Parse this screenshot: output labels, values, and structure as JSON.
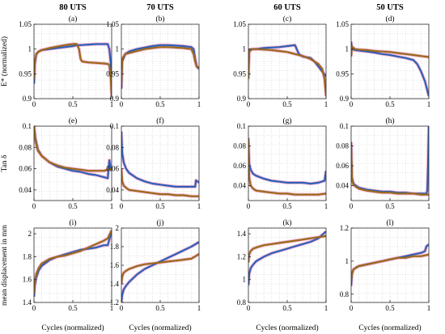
{
  "col_titles": [
    "80 UTS",
    "70 UTS",
    "60 UTS",
    "50 UTS"
  ],
  "panel_labels": [
    "(a)",
    "(b)",
    "(c)",
    "(d)",
    "(e)",
    "(f)",
    "(g)",
    "(h)",
    "(i)",
    "(j)",
    "(k)",
    "(l)"
  ],
  "row_ylabels": [
    "E* (normalized)",
    "Tan δ",
    "mean displacement in mm"
  ],
  "xlabel": "Cycles (normalized)",
  "colors": {
    "blue": "#2e60b8",
    "olive": "#9a6a1c",
    "pink": "#f4a5c8"
  },
  "chart_data": [
    {
      "type": "line",
      "panel": "(a)",
      "xlim": [
        0,
        1
      ],
      "ylim": [
        0.9,
        1.05
      ],
      "grid": true,
      "xticks": [
        0,
        0.5,
        1
      ],
      "yticks": [
        0.9,
        0.95,
        1,
        1.05
      ],
      "series": [
        {
          "x": [
            0,
            0.01,
            0.03,
            0.06,
            0.1,
            0.2,
            0.3,
            0.4,
            0.5,
            0.55,
            0.6,
            0.7,
            0.8,
            0.9,
            0.95,
            0.97,
            0.99,
            1
          ],
          "y": [
            0.93,
            0.97,
            0.99,
            0.995,
            0.998,
            1.0,
            1.002,
            1.004,
            1.006,
            1.008,
            1.008,
            1.009,
            1.01,
            1.01,
            1.01,
            1.0,
            0.97,
            0.91
          ]
        },
        {
          "x": [
            0,
            0.01,
            0.03,
            0.06,
            0.1,
            0.2,
            0.3,
            0.4,
            0.5,
            0.55,
            0.58,
            0.6,
            0.62,
            0.7,
            0.8,
            0.9,
            0.95,
            0.97,
            0.99,
            1
          ],
          "y": [
            0.94,
            0.975,
            0.99,
            0.995,
            0.998,
            1.002,
            1.005,
            1.008,
            1.01,
            1.01,
            1.0,
            0.98,
            0.975,
            0.973,
            0.972,
            0.971,
            0.97,
            0.968,
            0.94,
            0.905
          ]
        }
      ]
    },
    {
      "type": "line",
      "panel": "(b)",
      "xlim": [
        0,
        1
      ],
      "ylim": [
        0.9,
        1.05
      ],
      "grid": true,
      "xticks": [
        0,
        0.5,
        1
      ],
      "yticks": [
        0.9,
        0.95,
        1,
        1.05
      ],
      "series": [
        {
          "x": [
            0,
            0.01,
            0.05,
            0.1,
            0.2,
            0.3,
            0.4,
            0.5,
            0.6,
            0.7,
            0.8,
            0.9,
            0.93,
            0.95,
            0.97,
            1
          ],
          "y": [
            0.92,
            0.975,
            0.99,
            0.995,
            1.0,
            1.003,
            1.006,
            1.008,
            1.008,
            1.007,
            1.006,
            1.004,
            1.0,
            0.98,
            0.965,
            0.96
          ]
        },
        {
          "x": [
            0,
            0.01,
            0.05,
            0.1,
            0.2,
            0.3,
            0.4,
            0.5,
            0.6,
            0.7,
            0.8,
            0.9,
            0.93,
            0.95,
            0.97,
            1
          ],
          "y": [
            0.93,
            0.98,
            0.99,
            0.992,
            0.996,
            1.0,
            1.002,
            1.004,
            1.004,
            1.003,
            1.002,
            1.0,
            0.99,
            0.975,
            0.965,
            0.962
          ]
        }
      ]
    },
    {
      "type": "line",
      "panel": "(c)",
      "xlim": [
        0,
        1
      ],
      "ylim": [
        0.9,
        1.05
      ],
      "grid": true,
      "xticks": [
        0,
        0.5,
        1
      ],
      "yticks": [
        0.9,
        0.95,
        1,
        1.05
      ],
      "series": [
        {
          "x": [
            0,
            0.01,
            0.05,
            0.1,
            0.2,
            0.3,
            0.4,
            0.5,
            0.6,
            0.65,
            0.7,
            0.8,
            0.85,
            0.9,
            0.95,
            1
          ],
          "y": [
            0.96,
            0.998,
            1.0,
            1.0,
            1.002,
            1.003,
            1.004,
            1.006,
            1.008,
            0.99,
            0.985,
            0.982,
            0.975,
            0.965,
            0.955,
            0.945
          ]
        },
        {
          "x": [
            0,
            0.01,
            0.05,
            0.1,
            0.2,
            0.3,
            0.4,
            0.5,
            0.6,
            0.7,
            0.8,
            0.9,
            0.95,
            0.98,
            1
          ],
          "y": [
            0.94,
            0.995,
            1.0,
            1.0,
            0.999,
            0.998,
            0.996,
            0.994,
            0.99,
            0.986,
            0.98,
            0.97,
            0.96,
            0.94,
            0.905
          ]
        }
      ]
    },
    {
      "type": "line",
      "panel": "(d)",
      "xlim": [
        0,
        1
      ],
      "ylim": [
        0.9,
        1.05
      ],
      "grid": true,
      "xticks": [
        0,
        0.5,
        1
      ],
      "yticks": [
        0.9,
        0.95,
        1,
        1.05
      ],
      "series": [
        {
          "x": [
            0,
            0.01,
            0.05,
            0.1,
            0.2,
            0.3,
            0.4,
            0.5,
            0.6,
            0.7,
            0.8,
            0.85,
            0.9,
            0.95,
            1
          ],
          "y": [
            1.015,
            1.0,
            0.998,
            0.997,
            0.995,
            0.993,
            0.99,
            0.988,
            0.985,
            0.982,
            0.978,
            0.97,
            0.955,
            0.935,
            0.905
          ]
        },
        {
          "x": [
            0,
            0.01,
            0.05,
            0.1,
            0.2,
            0.3,
            0.4,
            0.5,
            0.6,
            0.7,
            0.8,
            0.9,
            1
          ],
          "y": [
            0.985,
            1.005,
            1.0,
            0.999,
            0.998,
            0.996,
            0.995,
            0.994,
            0.992,
            0.99,
            0.988,
            0.986,
            0.984
          ]
        }
      ]
    },
    {
      "type": "line",
      "panel": "(e)",
      "xlim": [
        0,
        1
      ],
      "ylim": [
        0.03,
        0.1
      ],
      "grid": true,
      "xticks": [
        0,
        0.5,
        1
      ],
      "yticks": [
        0.04,
        0.06,
        0.08,
        0.1
      ],
      "series": [
        {
          "x": [
            0,
            0.02,
            0.05,
            0.1,
            0.2,
            0.3,
            0.4,
            0.5,
            0.6,
            0.7,
            0.8,
            0.9,
            0.95,
            0.97,
            0.99,
            1
          ],
          "y": [
            0.1,
            0.088,
            0.078,
            0.072,
            0.066,
            0.062,
            0.06,
            0.058,
            0.057,
            0.055,
            0.054,
            0.052,
            0.051,
            0.068,
            0.06,
            0.058
          ]
        },
        {
          "x": [
            0,
            0.02,
            0.05,
            0.1,
            0.2,
            0.3,
            0.4,
            0.5,
            0.6,
            0.7,
            0.8,
            0.9,
            0.95,
            1
          ],
          "y": [
            0.1,
            0.086,
            0.077,
            0.072,
            0.066,
            0.063,
            0.061,
            0.06,
            0.059,
            0.058,
            0.058,
            0.058,
            0.059,
            0.06
          ]
        }
      ]
    },
    {
      "type": "line",
      "panel": "(f)",
      "xlim": [
        0,
        1
      ],
      "ylim": [
        0.03,
        0.1
      ],
      "grid": true,
      "xticks": [
        0,
        0.5,
        1
      ],
      "yticks": [
        0.04,
        0.06,
        0.08,
        0.1
      ],
      "series": [
        {
          "x": [
            0,
            0.01,
            0.03,
            0.06,
            0.1,
            0.2,
            0.3,
            0.4,
            0.5,
            0.6,
            0.7,
            0.8,
            0.9,
            0.95,
            0.96,
            1
          ],
          "y": [
            0.095,
            0.075,
            0.066,
            0.06,
            0.056,
            0.051,
            0.048,
            0.046,
            0.045,
            0.044,
            0.043,
            0.043,
            0.043,
            0.043,
            0.049,
            0.047
          ]
        },
        {
          "x": [
            0,
            0.01,
            0.03,
            0.06,
            0.1,
            0.2,
            0.3,
            0.4,
            0.5,
            0.6,
            0.7,
            0.8,
            0.9,
            1
          ],
          "y": [
            0.06,
            0.048,
            0.044,
            0.042,
            0.04,
            0.039,
            0.038,
            0.037,
            0.036,
            0.036,
            0.035,
            0.035,
            0.034,
            0.034
          ]
        }
      ]
    },
    {
      "type": "line",
      "panel": "(g)",
      "xlim": [
        0,
        1
      ],
      "ylim": [
        0.025,
        0.1
      ],
      "grid": true,
      "xticks": [
        0,
        0.5,
        1
      ],
      "yticks": [
        0.04,
        0.06,
        0.08,
        0.1
      ],
      "series": [
        {
          "x": [
            0,
            0.01,
            0.03,
            0.06,
            0.1,
            0.2,
            0.3,
            0.4,
            0.5,
            0.6,
            0.7,
            0.8,
            0.9,
            0.98,
            1
          ],
          "y": [
            0.085,
            0.062,
            0.056,
            0.052,
            0.05,
            0.047,
            0.045,
            0.044,
            0.043,
            0.043,
            0.043,
            0.042,
            0.043,
            0.045,
            0.055
          ]
        },
        {
          "x": [
            0,
            0.01,
            0.03,
            0.06,
            0.1,
            0.2,
            0.3,
            0.4,
            0.5,
            0.6,
            0.7,
            0.8,
            0.9,
            1
          ],
          "y": [
            0.088,
            0.048,
            0.04,
            0.037,
            0.035,
            0.034,
            0.033,
            0.032,
            0.032,
            0.031,
            0.031,
            0.031,
            0.031,
            0.032
          ]
        }
      ]
    },
    {
      "type": "line",
      "panel": "(h)",
      "xlim": [
        0,
        1
      ],
      "ylim": [
        0.025,
        0.1
      ],
      "grid": true,
      "xticks": [
        0,
        0.5,
        1
      ],
      "yticks": [
        0.04,
        0.06,
        0.08,
        0.1
      ],
      "series": [
        {
          "x": [
            0,
            0.01,
            0.03,
            0.06,
            0.1,
            0.2,
            0.3,
            0.4,
            0.5,
            0.6,
            0.7,
            0.8,
            0.9,
            0.95,
            0.97,
            0.98,
            0.99,
            1
          ],
          "y": [
            0.084,
            0.048,
            0.042,
            0.04,
            0.038,
            0.036,
            0.035,
            0.034,
            0.034,
            0.033,
            0.033,
            0.032,
            0.032,
            0.032,
            0.032,
            0.035,
            0.06,
            0.1
          ]
        },
        {
          "x": [
            0,
            0.01,
            0.03,
            0.06,
            0.1,
            0.2,
            0.3,
            0.4,
            0.5,
            0.6,
            0.7,
            0.8,
            0.9,
            1
          ],
          "y": [
            0.08,
            0.046,
            0.041,
            0.039,
            0.037,
            0.035,
            0.034,
            0.033,
            0.033,
            0.032,
            0.032,
            0.032,
            0.031,
            0.031
          ]
        }
      ]
    },
    {
      "type": "line",
      "panel": "(i)",
      "xlim": [
        0,
        1
      ],
      "ylim": [
        1.4,
        2.05
      ],
      "grid": true,
      "xticks": [
        0,
        0.5,
        1
      ],
      "yticks": [
        1.4,
        1.6,
        1.8,
        2
      ],
      "series": [
        {
          "x": [
            0,
            0.01,
            0.03,
            0.06,
            0.1,
            0.2,
            0.3,
            0.4,
            0.5,
            0.6,
            0.7,
            0.8,
            0.9,
            0.95,
            0.97,
            1
          ],
          "y": [
            1.45,
            1.55,
            1.62,
            1.68,
            1.72,
            1.77,
            1.8,
            1.82,
            1.84,
            1.86,
            1.87,
            1.88,
            1.9,
            1.9,
            1.95,
            2.02
          ]
        },
        {
          "x": [
            0,
            0.01,
            0.03,
            0.06,
            0.1,
            0.2,
            0.3,
            0.4,
            0.5,
            0.6,
            0.7,
            0.8,
            0.9,
            0.95,
            1
          ],
          "y": [
            1.48,
            1.58,
            1.65,
            1.7,
            1.74,
            1.78,
            1.8,
            1.81,
            1.83,
            1.85,
            1.88,
            1.91,
            1.94,
            1.96,
            2.03
          ]
        }
      ]
    },
    {
      "type": "line",
      "panel": "(j)",
      "xlim": [
        0,
        1
      ],
      "ylim": [
        1.2,
        2
      ],
      "grid": true,
      "xticks": [
        0,
        0.5,
        1
      ],
      "yticks": [
        1.2,
        1.4,
        1.6,
        1.8,
        2
      ],
      "series": [
        {
          "x": [
            0,
            0.01,
            0.03,
            0.06,
            0.1,
            0.2,
            0.3,
            0.4,
            0.5,
            0.6,
            0.7,
            0.8,
            0.9,
            1
          ],
          "y": [
            1.2,
            1.28,
            1.34,
            1.38,
            1.42,
            1.5,
            1.56,
            1.6,
            1.64,
            1.68,
            1.72,
            1.76,
            1.8,
            1.85
          ]
        },
        {
          "x": [
            0,
            0.01,
            0.03,
            0.06,
            0.1,
            0.2,
            0.3,
            0.4,
            0.5,
            0.6,
            0.7,
            0.8,
            0.9,
            1
          ],
          "y": [
            1.4,
            1.48,
            1.52,
            1.54,
            1.56,
            1.59,
            1.61,
            1.62,
            1.63,
            1.64,
            1.65,
            1.66,
            1.67,
            1.72
          ]
        }
      ]
    },
    {
      "type": "line",
      "panel": "(k)",
      "xlim": [
        0,
        1
      ],
      "ylim": [
        0.8,
        1.45
      ],
      "grid": true,
      "xticks": [
        0,
        0.5,
        1
      ],
      "yticks": [
        0.8,
        1,
        1.2,
        1.4
      ],
      "series": [
        {
          "x": [
            0,
            0.01,
            0.03,
            0.06,
            0.1,
            0.2,
            0.3,
            0.4,
            0.5,
            0.6,
            0.7,
            0.8,
            0.9,
            1
          ],
          "y": [
            0.95,
            1.05,
            1.1,
            1.13,
            1.16,
            1.2,
            1.23,
            1.25,
            1.27,
            1.29,
            1.31,
            1.33,
            1.36,
            1.42
          ]
        },
        {
          "x": [
            0,
            0.01,
            0.03,
            0.06,
            0.1,
            0.2,
            0.3,
            0.4,
            0.5,
            0.6,
            0.7,
            0.8,
            0.9,
            1
          ],
          "y": [
            1.15,
            1.22,
            1.25,
            1.27,
            1.28,
            1.3,
            1.31,
            1.32,
            1.33,
            1.34,
            1.35,
            1.36,
            1.37,
            1.38
          ]
        }
      ]
    },
    {
      "type": "line",
      "panel": "(l)",
      "xlim": [
        0,
        1
      ],
      "ylim": [
        0.75,
        1.2
      ],
      "grid": true,
      "xticks": [
        0,
        0.5,
        1
      ],
      "yticks": [
        0.8,
        1,
        1.2
      ],
      "series": [
        {
          "x": [
            0,
            0.01,
            0.03,
            0.06,
            0.1,
            0.2,
            0.3,
            0.4,
            0.5,
            0.6,
            0.7,
            0.8,
            0.9,
            0.95,
            0.97,
            1
          ],
          "y": [
            0.85,
            0.92,
            0.95,
            0.96,
            0.97,
            0.98,
            0.99,
            1.0,
            1.01,
            1.02,
            1.03,
            1.04,
            1.05,
            1.06,
            1.09,
            1.1
          ]
        },
        {
          "x": [
            0,
            0.01,
            0.03,
            0.06,
            0.1,
            0.2,
            0.3,
            0.4,
            0.5,
            0.6,
            0.7,
            0.8,
            0.9,
            1
          ],
          "y": [
            0.88,
            0.93,
            0.95,
            0.96,
            0.97,
            0.98,
            0.99,
            1.0,
            1.01,
            1.02,
            1.02,
            1.03,
            1.03,
            1.04
          ]
        }
      ]
    }
  ]
}
